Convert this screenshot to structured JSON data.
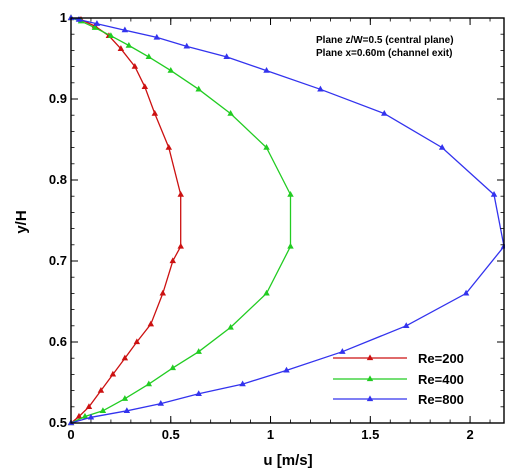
{
  "chart_data": {
    "type": "line",
    "title": "",
    "xlabel": "u [m/s]",
    "ylabel": "y/H",
    "xlim": [
      0,
      2.17
    ],
    "ylim": [
      0.5,
      1.0
    ],
    "x_ticks": [
      0,
      0.5,
      1,
      1.5,
      2
    ],
    "x_tick_labels": [
      "0",
      "0.5",
      "1",
      "1.5",
      "2"
    ],
    "y_ticks": [
      0.5,
      0.6,
      0.7,
      0.8,
      0.9,
      1.0
    ],
    "y_tick_labels": [
      "0.5",
      "0.6",
      "0.7",
      "0.8",
      "0.9",
      "1"
    ],
    "grid": false,
    "legend_position": "bottom-right",
    "annotations": [
      "Plane z/W=0.5 (central plane)",
      "Plane x=0.60m (channel exit)"
    ],
    "series": [
      {
        "name": "Re=200",
        "color": "#cc1111",
        "marker": "triangle",
        "points": [
          [
            0,
            0.5
          ],
          [
            0.04,
            0.508
          ],
          [
            0.09,
            0.52
          ],
          [
            0.15,
            0.54
          ],
          [
            0.21,
            0.56
          ],
          [
            0.27,
            0.58
          ],
          [
            0.33,
            0.6
          ],
          [
            0.4,
            0.622
          ],
          [
            0.46,
            0.66
          ],
          [
            0.51,
            0.7
          ],
          [
            0.55,
            0.718
          ],
          [
            0.55,
            0.782
          ],
          [
            0.49,
            0.84
          ],
          [
            0.42,
            0.882
          ],
          [
            0.37,
            0.915
          ],
          [
            0.32,
            0.94
          ],
          [
            0.25,
            0.962
          ],
          [
            0.19,
            0.978
          ],
          [
            0.12,
            0.99
          ],
          [
            0.05,
            0.998
          ],
          [
            0,
            1.0
          ]
        ]
      },
      {
        "name": "Re=400",
        "color": "#22cc22",
        "marker": "triangle",
        "points": [
          [
            0,
            0.5
          ],
          [
            0.07,
            0.508
          ],
          [
            0.16,
            0.515
          ],
          [
            0.27,
            0.53
          ],
          [
            0.39,
            0.548
          ],
          [
            0.51,
            0.568
          ],
          [
            0.64,
            0.588
          ],
          [
            0.8,
            0.618
          ],
          [
            0.98,
            0.66
          ],
          [
            1.1,
            0.718
          ],
          [
            1.1,
            0.782
          ],
          [
            0.98,
            0.84
          ],
          [
            0.8,
            0.882
          ],
          [
            0.64,
            0.912
          ],
          [
            0.5,
            0.935
          ],
          [
            0.39,
            0.952
          ],
          [
            0.29,
            0.966
          ],
          [
            0.2,
            0.978
          ],
          [
            0.12,
            0.988
          ],
          [
            0.05,
            0.996
          ],
          [
            0,
            1.0
          ]
        ]
      },
      {
        "name": "Re=800",
        "color": "#3333ee",
        "marker": "triangle",
        "points": [
          [
            0,
            0.5
          ],
          [
            0.1,
            0.507
          ],
          [
            0.28,
            0.515
          ],
          [
            0.45,
            0.524
          ],
          [
            0.64,
            0.536
          ],
          [
            0.86,
            0.548
          ],
          [
            1.08,
            0.565
          ],
          [
            1.36,
            0.588
          ],
          [
            1.68,
            0.62
          ],
          [
            1.98,
            0.66
          ],
          [
            2.17,
            0.718
          ],
          [
            2.12,
            0.782
          ],
          [
            1.86,
            0.84
          ],
          [
            1.57,
            0.882
          ],
          [
            1.25,
            0.912
          ],
          [
            0.98,
            0.935
          ],
          [
            0.78,
            0.952
          ],
          [
            0.58,
            0.965
          ],
          [
            0.43,
            0.976
          ],
          [
            0.27,
            0.985
          ],
          [
            0.13,
            0.993
          ],
          [
            0.04,
            0.998
          ],
          [
            0,
            1.0
          ]
        ]
      }
    ]
  }
}
